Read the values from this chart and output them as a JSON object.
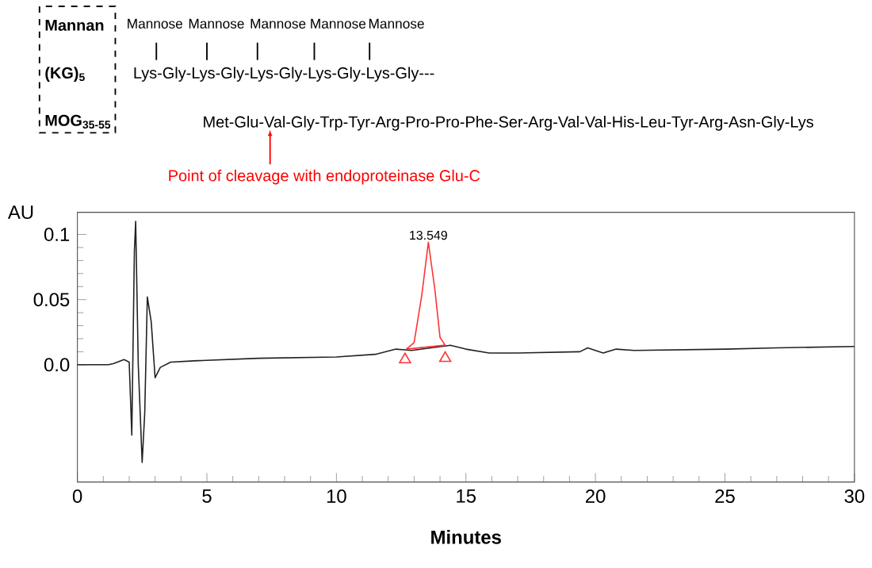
{
  "chart_data": {
    "type": "line",
    "xlabel": "Minutes",
    "ylabel": "AU",
    "xlim": [
      0,
      30
    ],
    "ylim": [
      -0.09,
      0.117
    ],
    "xticks": [
      0,
      5,
      10,
      15,
      20,
      25,
      30
    ],
    "yticks": [
      {
        "value": 0,
        "label": "0.0"
      },
      0.05,
      0.1
    ],
    "series": [
      {
        "color": "#222222",
        "x": [
          0,
          1.2,
          1.4,
          1.8,
          2.0,
          2.1,
          2.2,
          2.25,
          2.35,
          2.5,
          2.6,
          2.7,
          2.85,
          3.0,
          3.2,
          3.6,
          4.5,
          7,
          10,
          11.5,
          12.3,
          12.9,
          14.4,
          15,
          15.9,
          17,
          19.4,
          19.7,
          20.3,
          20.8,
          21.5,
          25,
          27,
          30
        ],
        "values": [
          0,
          0,
          0.001,
          0.004,
          0.002,
          -0.054,
          0.087,
          0.11,
          0,
          -0.075,
          -0.037,
          0.052,
          0.033,
          -0.01,
          -0.002,
          0.002,
          0.003,
          0.005,
          0.006,
          0.008,
          0.012,
          0.011,
          0.015,
          0.012,
          0.009,
          0.009,
          0.01,
          0.013,
          0.009,
          0.012,
          0.011,
          0.012,
          0.013,
          0.014
        ]
      },
      {
        "color": "#ff3333",
        "x": [
          12.7,
          13.0,
          13.3,
          13.55,
          13.8,
          14.0,
          14.2
        ],
        "values": [
          0.012,
          0.017,
          0.054,
          0.094,
          0.058,
          0.021,
          0.015
        ]
      },
      {
        "color": "#ff3333",
        "x": [
          12.7,
          14.2
        ],
        "values": [
          0.012,
          0.015
        ]
      },
      {
        "type": "scatter",
        "color": "#ff3333",
        "marker": "triangle",
        "x": [
          12.65,
          14.2
        ],
        "values": [
          0.004,
          0.005
        ]
      }
    ],
    "annotations": [
      {
        "text": "13.549",
        "x": 13.549,
        "y": 0.094
      },
      "**Mannan**",
      "**(KG)$_{5}$**",
      "**MOG$_{35-55}$**",
      "Mannose",
      "Mannose",
      "Mannose",
      "Mannose",
      "Mannose",
      "Lys-Gly-Lys-Gly-Lys-Gly-Lys-Gly-Lys-Gly---",
      "Met-Glu-Val-Gly-Trp-Tyr-Arg-Pro-Pro-Phe-Ser-Arg-Val-Val-His-Leu-Tyr-Arg-Asn-Gly-Lys",
      "Point of cleavage with endoproteinase Glu-C"
    ]
  }
}
